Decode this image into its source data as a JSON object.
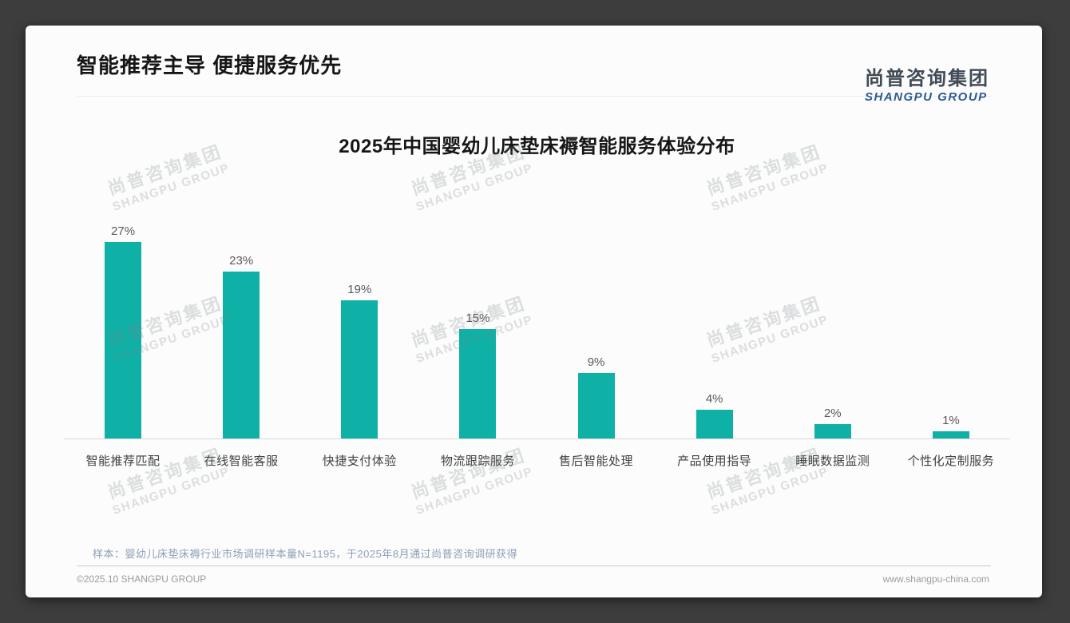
{
  "header": {
    "title": "智能推荐主导 便捷服务优先"
  },
  "logo": {
    "name_cn": "尚普咨询集团",
    "name_en": "SHANGPU GROUP"
  },
  "watermark": {
    "line1": "尚普咨询集团",
    "line2": "SHANGPU GROUP"
  },
  "chart_data": {
    "type": "bar",
    "title": "2025年中国婴幼儿床垫床褥智能服务体验分布",
    "categories": [
      "智能推荐匹配",
      "在线智能客服",
      "快捷支付体验",
      "物流跟踪服务",
      "售后智能处理",
      "产品使用指导",
      "睡眠数据监测",
      "个性化定制服务"
    ],
    "values": [
      27,
      23,
      19,
      15,
      9,
      4,
      2,
      1
    ],
    "value_labels": [
      "27%",
      "23%",
      "19%",
      "15%",
      "9%",
      "4%",
      "2%",
      "1%"
    ],
    "unit": "%",
    "ylim": [
      0,
      30
    ],
    "grid": false,
    "legend": false,
    "bar_color": "#0fb0a6"
  },
  "note": {
    "text": "样本：婴幼儿床垫床褥行业市场调研样本量N=1195，于2025年8月通过尚普咨询调研获得"
  },
  "footer": {
    "left": "©2025.10 SHANGPU GROUP",
    "right": "www.shangpu-china.com"
  },
  "colors": {
    "bar_teal": "#0fb0a6",
    "logo_blue": "#2b5a93",
    "logo_dark": "#414b57",
    "title_text": "#161616",
    "value_label": "#595959",
    "note_text": "#8da0b6",
    "backdrop": "#3d3d3d"
  }
}
